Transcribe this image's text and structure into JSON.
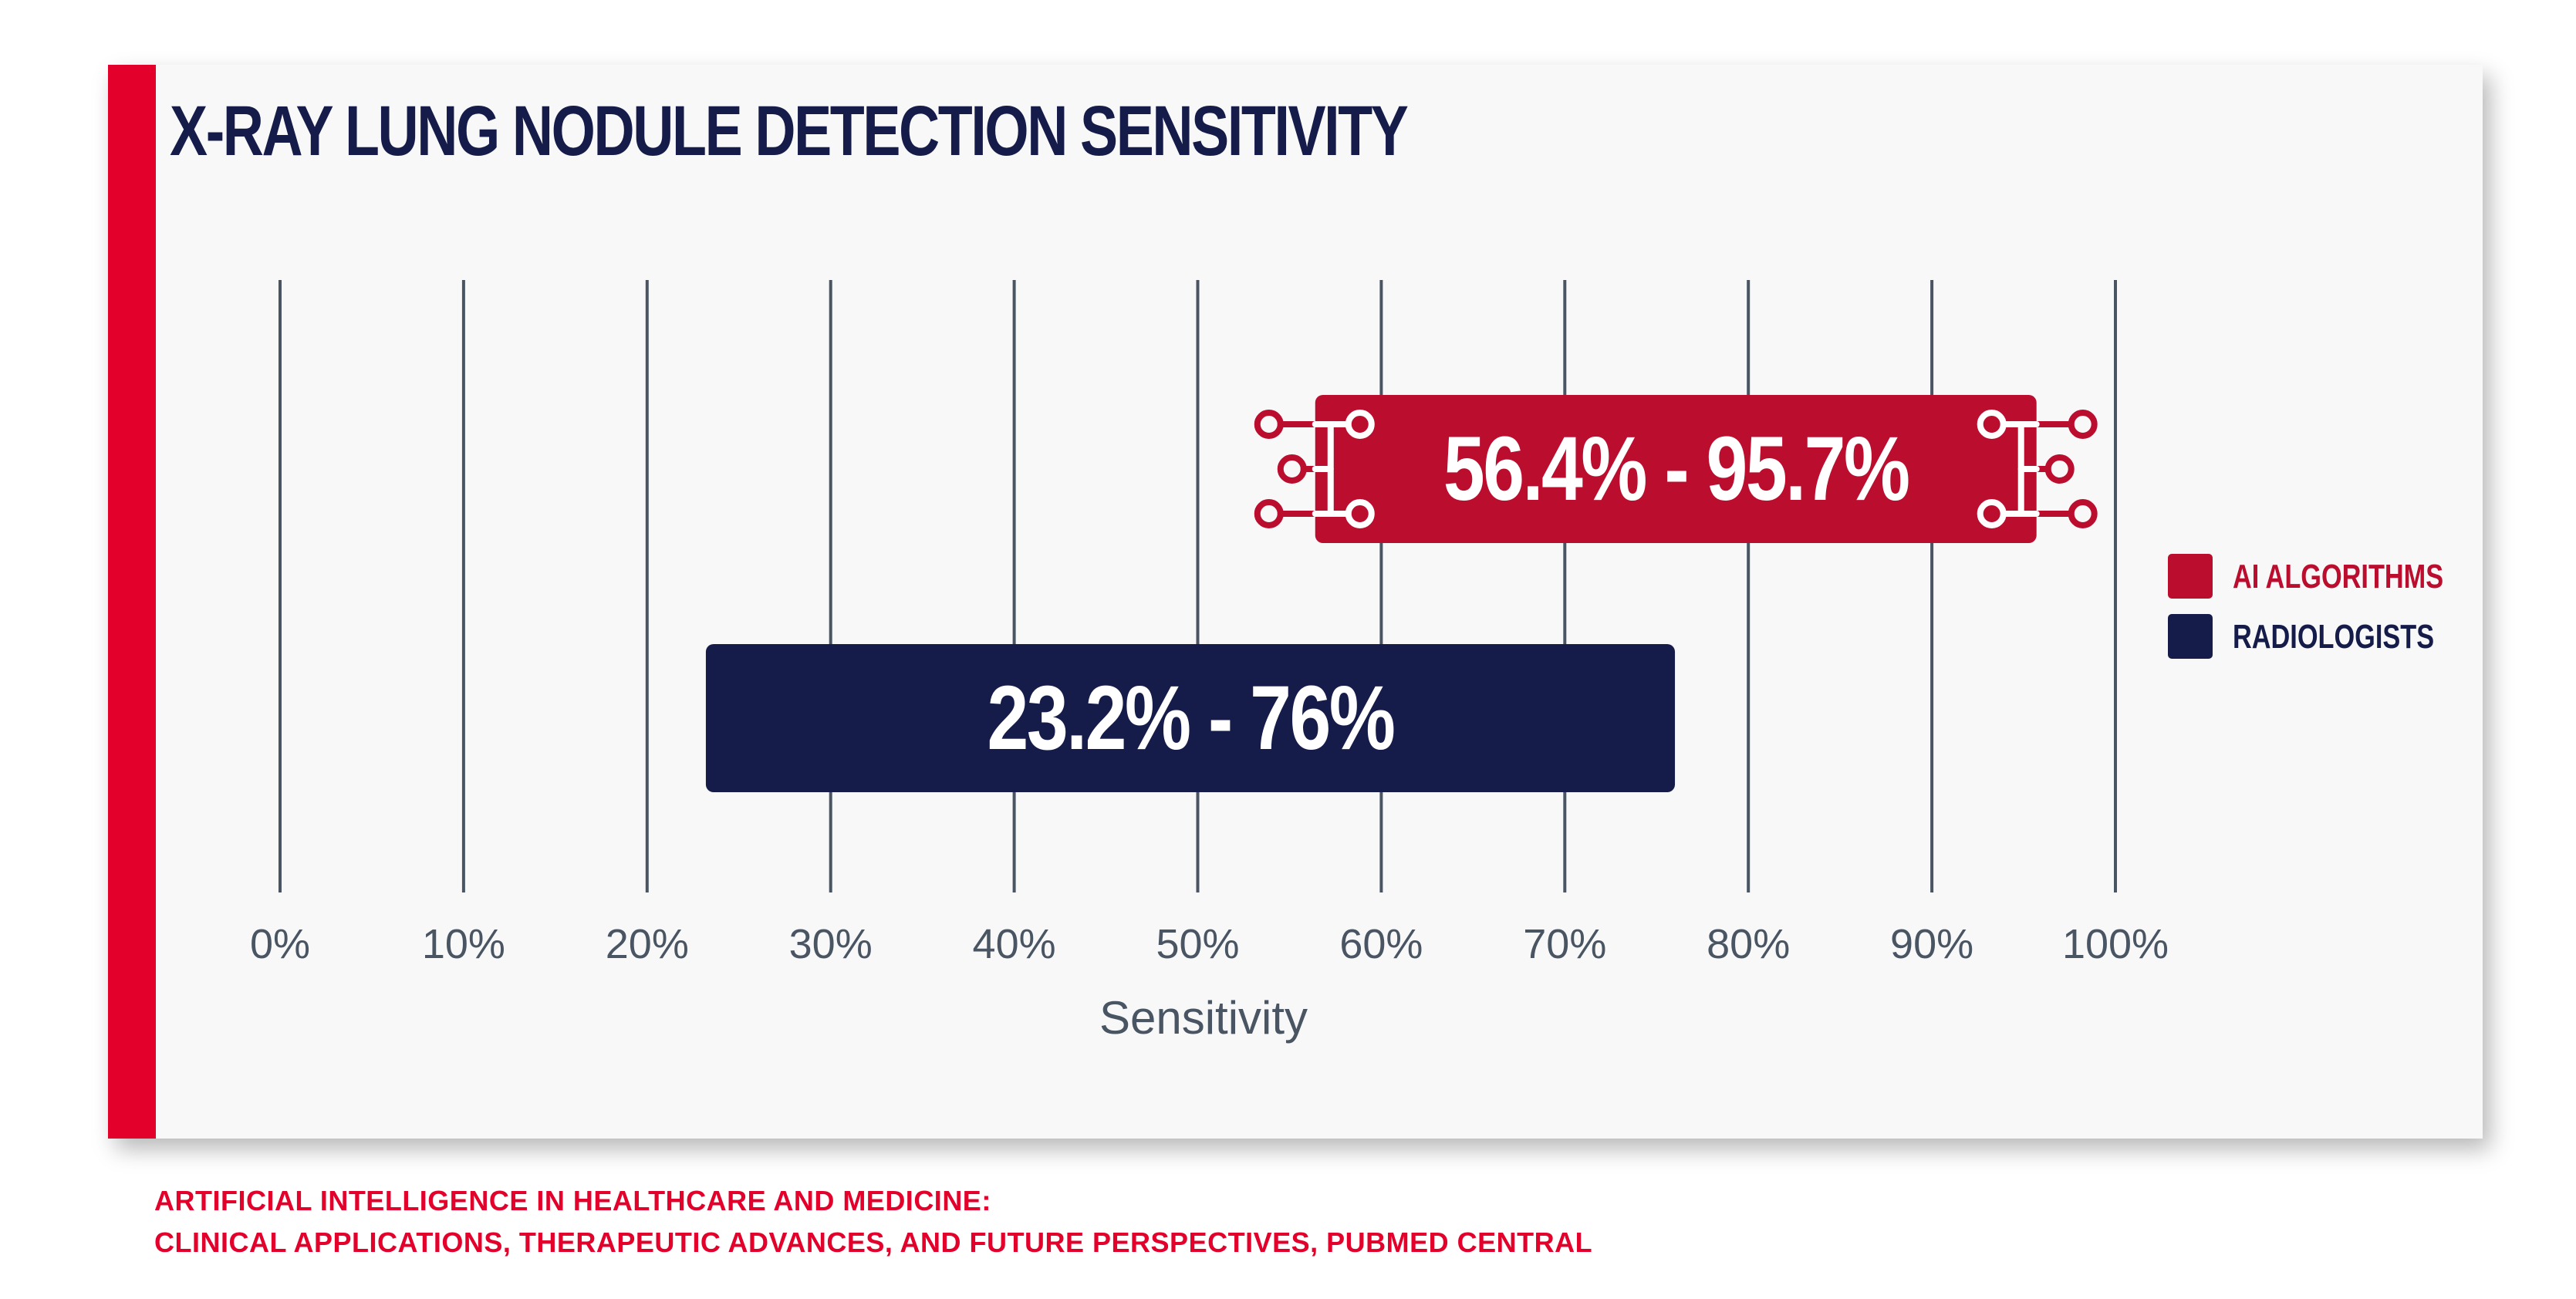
{
  "chart_data": {
    "type": "bar",
    "orientation": "horizontal-range",
    "title": "X-RAY LUNG NODULE DETECTION SENSITIVITY",
    "xlabel": "Sensitivity",
    "ylabel": "",
    "xlim": [
      0,
      100
    ],
    "ticks": [
      {
        "value": 0,
        "label": "0%"
      },
      {
        "value": 10,
        "label": "10%"
      },
      {
        "value": 20,
        "label": "20%"
      },
      {
        "value": 30,
        "label": "30%"
      },
      {
        "value": 40,
        "label": "40%"
      },
      {
        "value": 50,
        "label": "50%"
      },
      {
        "value": 60,
        "label": "60%"
      },
      {
        "value": 70,
        "label": "70%"
      },
      {
        "value": 80,
        "label": "80%"
      },
      {
        "value": 90,
        "label": "90%"
      },
      {
        "value": 100,
        "label": "100%"
      }
    ],
    "grid": true,
    "legend_position": "right",
    "series": [
      {
        "name": "AI ALGORITHMS",
        "start": 56.4,
        "end": 95.7,
        "label": "56.4% - 95.7%",
        "color": "#bb0d2e",
        "icon": "circuit-icon"
      },
      {
        "name": "RADIOLOGISTS",
        "start": 23.2,
        "end": 76,
        "label": "23.2% - 76%",
        "color": "#151c4a"
      }
    ]
  },
  "source": {
    "line1": "ARTIFICIAL INTELLIGENCE IN HEALTHCARE AND MEDICINE:",
    "line2": "CLINICAL APPLICATIONS, THERAPEUTIC ADVANCES, AND FUTURE PERSPECTIVES, PUBMED CENTRAL"
  },
  "colors": {
    "accent": "#e3002b",
    "ai_bar": "#bb0d2e",
    "radiologist_bar": "#151c4a",
    "gridline": "#4a5563",
    "tick_text": "#4a5563",
    "card_background": "#f8f8f9"
  }
}
